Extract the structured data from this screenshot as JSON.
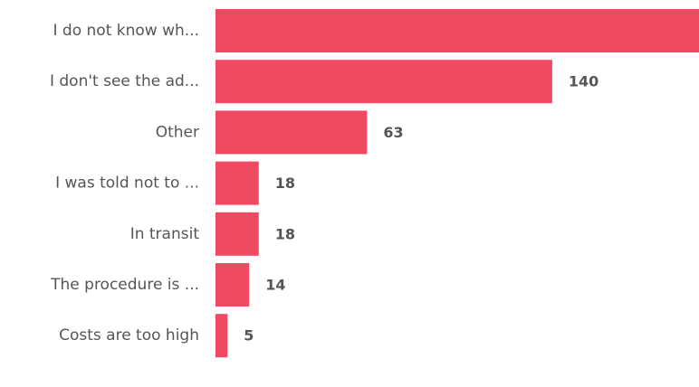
{
  "colors": {
    "bar": "#f04a62",
    "text": "#555555",
    "background": "#ffffff"
  },
  "chart_data": {
    "type": "bar",
    "orientation": "horizontal",
    "title": "",
    "xlabel": "",
    "ylabel": "",
    "grid": false,
    "legend": "none",
    "categories": [
      "I do not know wh...",
      "I don't see the ad...",
      "Other",
      "I was told not to ...",
      "In transit",
      "The procedure is ...",
      "Costs are too high"
    ],
    "values": [
      201,
      140,
      63,
      18,
      18,
      14,
      5
    ],
    "value_labels": [
      "",
      "140",
      "63",
      "18",
      "18",
      "14",
      "5"
    ],
    "xlim": [
      0,
      201
    ]
  }
}
